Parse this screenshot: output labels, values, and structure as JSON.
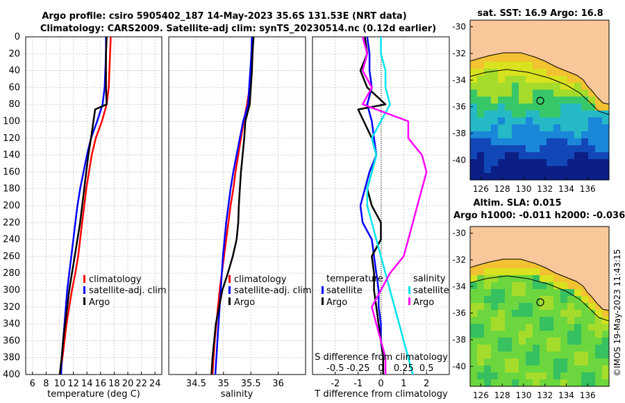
{
  "title": {
    "line1": "Argo profile: csiro 5905402_187 14-May-2023 35.6S 131.53E (NRT data)",
    "line2": "Climatology: CARS2009. Satellite-adj clim: synTS_20230514.nc (0.12d earlier)"
  },
  "side_stamp": "©IMOS 19-May-2023 11:43:15",
  "colors": {
    "climatology": "#ff0000",
    "satellite": "#0000ff",
    "argo": "#000000",
    "sal_satellite": "#00e5ee",
    "sal_argo": "#ff00ff",
    "land": "#f8c79a"
  },
  "depth_ticks": [
    "0",
    "20",
    "40",
    "60",
    "80",
    "100",
    "120",
    "140",
    "160",
    "180",
    "200",
    "220",
    "240",
    "260",
    "280",
    "300",
    "320",
    "340",
    "360",
    "380",
    "400"
  ],
  "chart_data": [
    {
      "type": "line",
      "id": "temperature",
      "xlabel": "temperature (deg C)",
      "ylabel": "depth",
      "xlim": [
        5,
        25
      ],
      "ylim": [
        400,
        0
      ],
      "xtick_labels": [
        "6",
        "8",
        "10",
        "12",
        "14",
        "16",
        "18",
        "20",
        "22",
        "24"
      ],
      "legend": [
        "climatology",
        "satellite-adj. clim",
        "Argo"
      ],
      "series": [
        {
          "name": "climatology",
          "color": "#ff0000",
          "x": [
            17.5,
            17.4,
            17.3,
            17.2,
            16.9,
            16.2,
            15.3,
            14.7,
            14.3,
            13.9,
            13.6,
            13.3,
            13.0,
            12.7,
            12.3,
            11.8,
            11.4,
            11.0,
            10.7,
            10.4,
            10.1
          ],
          "y": [
            0,
            20,
            40,
            60,
            80,
            100,
            120,
            140,
            160,
            180,
            200,
            220,
            240,
            260,
            280,
            300,
            320,
            340,
            360,
            380,
            400
          ]
        },
        {
          "name": "satellite-adj. clim",
          "color": "#0000ff",
          "x": [
            16.8,
            16.8,
            16.7,
            16.6,
            16.3,
            15.5,
            14.6,
            14.0,
            13.5,
            13.0,
            12.6,
            12.3,
            12.0,
            11.7,
            11.4,
            11.1,
            10.9,
            10.7,
            10.5,
            10.3,
            10.2
          ],
          "y": [
            0,
            20,
            40,
            60,
            80,
            100,
            120,
            140,
            160,
            180,
            200,
            220,
            240,
            260,
            280,
            300,
            320,
            340,
            360,
            380,
            400
          ]
        },
        {
          "name": "Argo",
          "color": "#000000",
          "x": [
            16.9,
            16.8,
            16.8,
            16.8,
            16.9,
            15.2,
            14.6,
            14.2,
            13.9,
            13.6,
            13.3,
            13.0,
            12.6,
            12.2,
            11.8,
            11.4,
            11.1,
            10.8,
            10.5,
            10.3,
            10.0
          ],
          "y": [
            0,
            20,
            40,
            60,
            80,
            86,
            120,
            140,
            160,
            180,
            200,
            220,
            240,
            260,
            280,
            300,
            320,
            340,
            360,
            380,
            400
          ]
        }
      ]
    },
    {
      "type": "line",
      "id": "salinity",
      "xlabel": "salinity",
      "ylabel": "depth",
      "xlim": [
        34.0,
        36.5
      ],
      "ylim": [
        400,
        0
      ],
      "xtick_labels": [
        "34.5",
        "35",
        "35.5",
        "36"
      ],
      "legend": [
        "climatology",
        "satellite-adj. clim",
        "Argo"
      ],
      "series": [
        {
          "name": "climatology",
          "color": "#ff0000",
          "x": [
            35.52,
            35.52,
            35.5,
            35.48,
            35.43,
            35.37,
            35.32,
            35.27,
            35.22,
            35.18,
            35.13,
            35.09,
            35.05,
            35.01,
            34.97,
            34.93,
            34.9,
            34.87,
            34.84,
            34.82,
            34.8
          ],
          "y": [
            0,
            20,
            40,
            60,
            80,
            100,
            120,
            140,
            160,
            180,
            200,
            220,
            240,
            260,
            280,
            300,
            320,
            340,
            360,
            380,
            400
          ]
        },
        {
          "name": "satellite-adj. clim",
          "color": "#0000ff",
          "x": [
            35.52,
            35.51,
            35.49,
            35.47,
            35.45,
            35.36,
            35.3,
            35.24,
            35.18,
            35.13,
            35.09,
            35.05,
            35.02,
            34.99,
            34.97,
            34.95,
            34.93,
            34.91,
            34.89,
            34.87,
            34.85
          ],
          "y": [
            0,
            20,
            40,
            60,
            80,
            100,
            120,
            140,
            160,
            180,
            200,
            220,
            240,
            260,
            280,
            300,
            320,
            340,
            360,
            380,
            400
          ]
        },
        {
          "name": "Argo",
          "color": "#000000",
          "x": [
            35.55,
            35.53,
            35.52,
            35.5,
            35.48,
            35.4,
            35.38,
            35.35,
            35.32,
            35.3,
            35.28,
            35.27,
            35.24,
            35.17,
            35.08,
            34.98,
            34.92,
            34.86,
            34.83,
            34.8,
            34.78
          ],
          "y": [
            0,
            20,
            40,
            60,
            80,
            100,
            120,
            140,
            160,
            180,
            200,
            220,
            240,
            260,
            280,
            300,
            320,
            340,
            360,
            380,
            400
          ]
        }
      ]
    },
    {
      "type": "line",
      "id": "difference",
      "xlabel": "T difference from climatology",
      "x2label": "S difference from climatology",
      "ylabel": "depth",
      "xlim": [
        -3,
        3
      ],
      "ylim": [
        400,
        0
      ],
      "xtick_labels": [
        "-2",
        "-1",
        "0",
        "1",
        "2"
      ],
      "x2tick_labels": [
        "-0.5",
        "-0.25",
        "0",
        "0.25",
        "0.5"
      ],
      "legend_temperature_title": "temperature",
      "legend_salinity_title": "salinity",
      "legend_temperature": [
        "satellite",
        "Argo"
      ],
      "legend_salinity": [
        "satellite",
        "Argo"
      ],
      "series": [
        {
          "name": "T satellite",
          "color": "#0000ff",
          "x": [
            -0.6,
            -0.5,
            -0.5,
            -0.4,
            -0.6,
            -0.4,
            -0.3,
            -0.2,
            -0.5,
            -0.7,
            -0.9,
            -0.8,
            -0.4,
            -0.3,
            -0.2,
            -0.1,
            -0.1,
            0.0,
            0.0,
            0.1,
            0.1
          ],
          "y": [
            0,
            20,
            40,
            60,
            80,
            100,
            120,
            140,
            160,
            180,
            200,
            220,
            240,
            260,
            280,
            300,
            320,
            340,
            360,
            380,
            400
          ]
        },
        {
          "name": "T Argo",
          "color": "#000000",
          "x": [
            -0.7,
            -0.6,
            -0.9,
            -0.6,
            0.2,
            -1.0,
            -0.4,
            -0.2,
            -0.4,
            -0.6,
            -0.4,
            0.0,
            0.0,
            -0.4,
            -0.3,
            -0.3,
            -0.2,
            -0.1,
            0.0,
            0.1,
            0.1
          ],
          "y": [
            0,
            20,
            40,
            60,
            80,
            86,
            120,
            140,
            160,
            180,
            200,
            220,
            240,
            260,
            280,
            300,
            320,
            340,
            360,
            380,
            400
          ]
        },
        {
          "name": "S satellite",
          "color": "#00e5ee",
          "x": [
            0.0,
            0.0,
            0.05,
            0.05,
            0.1,
            0.0,
            -0.1,
            -0.05,
            -0.1,
            -0.15,
            -0.15,
            -0.1,
            -0.05,
            0.0,
            0.05,
            0.1,
            0.15,
            0.2,
            0.25,
            0.3,
            0.35
          ],
          "y": [
            0,
            20,
            40,
            60,
            80,
            100,
            120,
            140,
            160,
            180,
            200,
            220,
            240,
            260,
            280,
            300,
            320,
            340,
            360,
            380,
            400
          ]
        },
        {
          "name": "S Argo",
          "color": "#ff00ff",
          "x": [
            -0.2,
            -0.15,
            -0.2,
            -0.1,
            -0.2,
            0.3,
            0.3,
            0.45,
            0.5,
            0.45,
            0.4,
            0.35,
            0.3,
            0.25,
            0.1,
            0.0,
            -0.1,
            -0.05,
            0.0,
            0.05,
            0.05
          ],
          "y": [
            0,
            20,
            40,
            60,
            80,
            100,
            120,
            140,
            160,
            180,
            200,
            220,
            240,
            260,
            280,
            300,
            320,
            340,
            360,
            380,
            400
          ]
        }
      ]
    },
    {
      "type": "heatmap",
      "id": "sst_map",
      "title": "sat. SST: 16.9 Argo: 16.8",
      "xlim": [
        125,
        138
      ],
      "ylim": [
        -41.5,
        -29.5
      ],
      "xtick_labels": [
        "126",
        "128",
        "130",
        "132",
        "134",
        "136"
      ],
      "ytick_labels": [
        "-30",
        "-32",
        "-34",
        "-36",
        "-38",
        "-40"
      ],
      "marker": {
        "lon": 131.53,
        "lat": -35.6
      }
    },
    {
      "type": "heatmap",
      "id": "sla_map",
      "title": "Altim. SLA: 0.015",
      "subtitle": "Argo h1000: -0.011 h2000: -0.036",
      "xlim": [
        125,
        138
      ],
      "ylim": [
        -41.5,
        -29.5
      ],
      "xtick_labels": [
        "126",
        "128",
        "130",
        "132",
        "134",
        "136"
      ],
      "ytick_labels": [
        "-30",
        "-32",
        "-34",
        "-36",
        "-38",
        "-40"
      ],
      "marker": {
        "lon": 131.53,
        "lat": -35.6
      }
    }
  ]
}
